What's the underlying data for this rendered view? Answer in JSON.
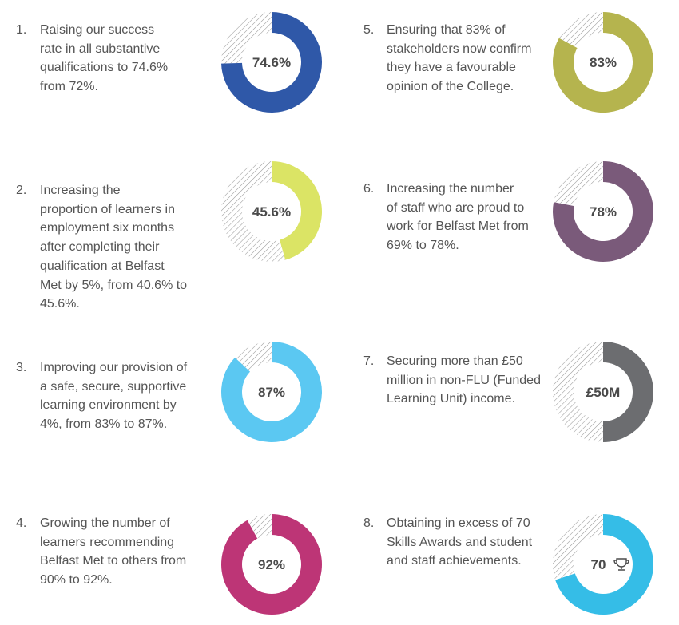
{
  "chart_data": [
    {
      "type": "pie",
      "number": "1.",
      "text": "Raising our success\nrate in all substantive\nqualifications to 74.6%\nfrom 72%.",
      "value": 74.6,
      "label": "74.6%",
      "color": "#2f58a8"
    },
    {
      "type": "pie",
      "number": "2.",
      "text": "Increasing the\nproportion of learners in\nemployment six months\nafter completing their\nqualification at Belfast\nMet by 5%, from 40.6% to\n45.6%.",
      "value": 45.6,
      "label": "45.6%",
      "color": "#dbe465"
    },
    {
      "type": "pie",
      "number": "3.",
      "text": "Improving our provision of\na safe, secure, supportive\nlearning environment by\n4%, from 83% to 87%.",
      "value": 87,
      "label": "87%",
      "color": "#5bc8f2"
    },
    {
      "type": "pie",
      "number": "4.",
      "text": "Growing the number of\nlearners recommending\nBelfast Met to others from\n90% to 92%.",
      "value": 92,
      "label": "92%",
      "color": "#bd3576"
    },
    {
      "type": "pie",
      "number": "5.",
      "text": "Ensuring that 83% of\nstakeholders now confirm\nthey have a favourable\nopinion of the College.",
      "value": 83,
      "label": "83%",
      "color": "#b5b44e"
    },
    {
      "type": "pie",
      "number": "6.",
      "text": "Increasing the number\nof staff who are proud to\nwork for Belfast Met from\n69% to 78%.",
      "value": 78,
      "label": "78%",
      "color": "#7a5a7a"
    },
    {
      "type": "pie",
      "number": "7.",
      "text": "Securing more than £50\nmillion in non-FLU (Funded\nLearning Unit) income.",
      "value": 50,
      "label": "£50M",
      "color": "#6c6d70"
    },
    {
      "type": "pie",
      "number": "8.",
      "text": "Obtaining in excess of 70\nSkills Awards and student\nand staff achievements.",
      "value": 70,
      "label": "70",
      "color": "#35bde7",
      "trophy": true
    }
  ]
}
